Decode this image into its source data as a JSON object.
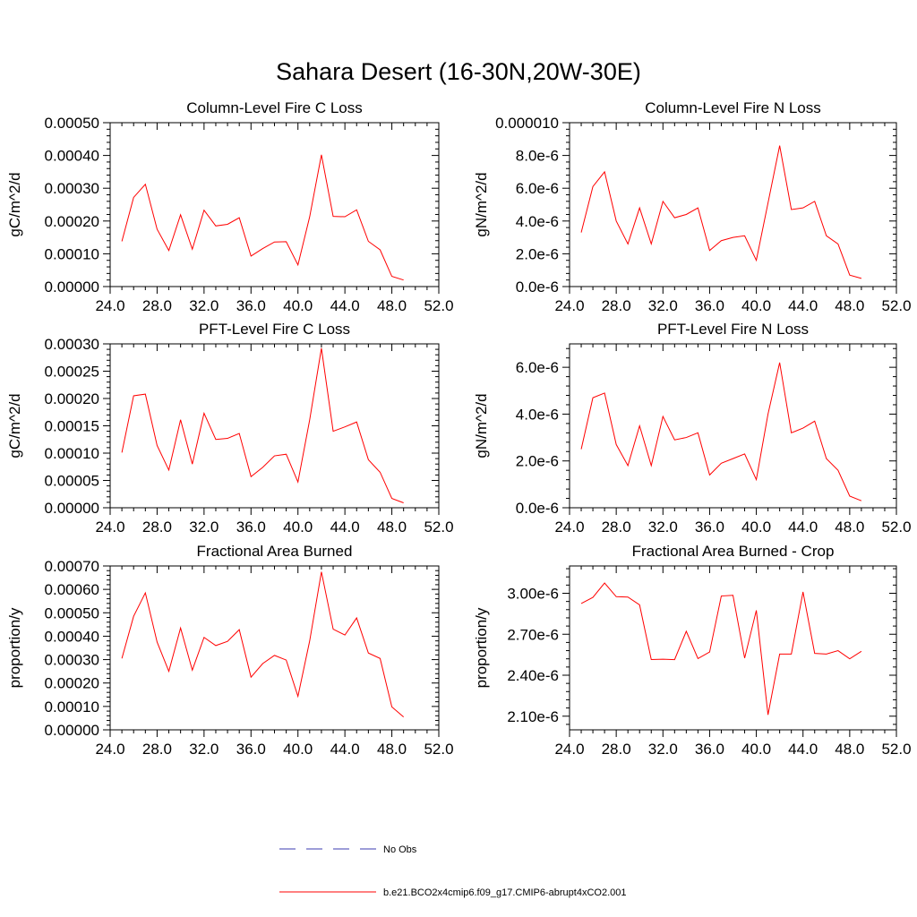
{
  "figure": {
    "title": "Sahara Desert (16-30N,20W-30E)"
  },
  "legend": {
    "items": [
      {
        "label": "No Obs",
        "color": "#3b3bb0",
        "style": "dashed"
      },
      {
        "label": "b.e21.BCO2x4cmip6.f09_g17.CMIP6-abrupt4xCO2.001",
        "color": "#ff0000",
        "style": "solid"
      }
    ]
  },
  "chart_data": [
    {
      "type": "line",
      "title": "Column-Level Fire C Loss",
      "ylabel": "gC/m^2/d",
      "xlim": [
        24,
        52
      ],
      "ylim": [
        0,
        0.0005
      ],
      "xticks": [
        24,
        28,
        32,
        36,
        40,
        44,
        48,
        52
      ],
      "xtick_labels": [
        "24.0",
        "28.0",
        "32.0",
        "36.0",
        "40.0",
        "44.0",
        "48.0",
        "52.0"
      ],
      "yticks": [
        0,
        0.0001,
        0.0002,
        0.0003,
        0.0004,
        0.0005
      ],
      "ytick_labels": [
        "0.00000",
        "0.00010",
        "0.00020",
        "0.00030",
        "0.00040",
        "0.00050"
      ],
      "x": [
        25,
        26,
        27,
        28,
        29,
        30,
        31,
        32,
        33,
        34,
        35,
        36,
        37,
        38,
        39,
        40,
        41,
        42,
        43,
        44,
        45,
        46,
        47,
        48,
        49
      ],
      "series": [
        {
          "values": [
            0.000138,
            0.000272,
            0.000312,
            0.000175,
            0.00011,
            0.000219,
            0.000114,
            0.000233,
            0.000185,
            0.00019,
            0.00021,
            9.3e-05,
            0.000116,
            0.000136,
            0.000137,
            6.6e-05,
            0.000213,
            0.000402,
            0.000214,
            0.000213,
            0.000234,
            0.000138,
            0.000112,
            3.1e-05,
            2e-05
          ],
          "color": "#ff0000"
        }
      ]
    },
    {
      "type": "line",
      "title": "Column-Level Fire N Loss",
      "ylabel": "gN/m^2/d",
      "xlim": [
        24,
        52
      ],
      "ylim": [
        0,
        1e-05
      ],
      "xticks": [
        24,
        28,
        32,
        36,
        40,
        44,
        48,
        52
      ],
      "xtick_labels": [
        "24.0",
        "28.0",
        "32.0",
        "36.0",
        "40.0",
        "44.0",
        "48.0",
        "52.0"
      ],
      "yticks": [
        0,
        2e-06,
        4e-06,
        6e-06,
        8e-06,
        1e-05
      ],
      "ytick_labels": [
        "0.0e-6",
        "2.0e-6",
        "4.0e-6",
        "6.0e-6",
        "8.0e-6",
        "0.000010"
      ],
      "x": [
        25,
        26,
        27,
        28,
        29,
        30,
        31,
        32,
        33,
        34,
        35,
        36,
        37,
        38,
        39,
        40,
        41,
        42,
        43,
        44,
        45,
        46,
        47,
        48,
        49
      ],
      "series": [
        {
          "values": [
            3.3e-06,
            6.1e-06,
            7e-06,
            4e-06,
            2.6e-06,
            4.8e-06,
            2.6e-06,
            5.2e-06,
            4.2e-06,
            4.4e-06,
            4.8e-06,
            2.2e-06,
            2.8e-06,
            3e-06,
            3.1e-06,
            1.6e-06,
            5.1e-06,
            8.6e-06,
            4.7e-06,
            4.8e-06,
            5.2e-06,
            3.1e-06,
            2.6e-06,
            7e-07,
            5e-07
          ],
          "color": "#ff0000"
        }
      ]
    },
    {
      "type": "line",
      "title": "PFT-Level Fire C Loss",
      "ylabel": "gC/m^2/d",
      "xlim": [
        24,
        52
      ],
      "ylim": [
        0,
        0.0003
      ],
      "xticks": [
        24,
        28,
        32,
        36,
        40,
        44,
        48,
        52
      ],
      "xtick_labels": [
        "24.0",
        "28.0",
        "32.0",
        "36.0",
        "40.0",
        "44.0",
        "48.0",
        "52.0"
      ],
      "yticks": [
        0,
        5e-05,
        0.0001,
        0.00015,
        0.0002,
        0.00025,
        0.0003
      ],
      "ytick_labels": [
        "0.00000",
        "0.00005",
        "0.00010",
        "0.00015",
        "0.00020",
        "0.00025",
        "0.00030"
      ],
      "x": [
        25,
        26,
        27,
        28,
        29,
        30,
        31,
        32,
        33,
        34,
        35,
        36,
        37,
        38,
        39,
        40,
        41,
        42,
        43,
        44,
        45,
        46,
        47,
        48,
        49
      ],
      "series": [
        {
          "values": [
            0.000101,
            0.000205,
            0.000208,
            0.000114,
            6.9e-05,
            0.000161,
            8e-05,
            0.000173,
            0.000125,
            0.000127,
            0.000136,
            5.7e-05,
            7.4e-05,
            9.5e-05,
            9.8e-05,
            4.7e-05,
            0.000161,
            0.000292,
            0.00014,
            0.000148,
            0.000157,
            8.8e-05,
            6.5e-05,
            1.7e-05,
            9e-06
          ],
          "color": "#ff0000"
        }
      ]
    },
    {
      "type": "line",
      "title": "PFT-Level Fire N Loss",
      "ylabel": "gN/m^2/d",
      "xlim": [
        24,
        52
      ],
      "ylim": [
        0,
        7e-06
      ],
      "xticks": [
        24,
        28,
        32,
        36,
        40,
        44,
        48,
        52
      ],
      "xtick_labels": [
        "24.0",
        "28.0",
        "32.0",
        "36.0",
        "40.0",
        "44.0",
        "48.0",
        "52.0"
      ],
      "yticks": [
        0,
        2e-06,
        4e-06,
        6e-06
      ],
      "ytick_labels": [
        "0.0e-6",
        "2.0e-6",
        "4.0e-6",
        "6.0e-6"
      ],
      "x": [
        25,
        26,
        27,
        28,
        29,
        30,
        31,
        32,
        33,
        34,
        35,
        36,
        37,
        38,
        39,
        40,
        41,
        42,
        43,
        44,
        45,
        46,
        47,
        48,
        49
      ],
      "series": [
        {
          "values": [
            2.5e-06,
            4.7e-06,
            4.9e-06,
            2.7e-06,
            1.8e-06,
            3.5e-06,
            1.8e-06,
            3.9e-06,
            2.9e-06,
            3e-06,
            3.2e-06,
            1.4e-06,
            1.9e-06,
            2.1e-06,
            2.3e-06,
            1.2e-06,
            4e-06,
            6.2e-06,
            3.2e-06,
            3.4e-06,
            3.7e-06,
            2.1e-06,
            1.6e-06,
            5e-07,
            3e-07
          ],
          "color": "#ff0000"
        }
      ]
    },
    {
      "type": "line",
      "title": "Fractional Area Burned",
      "ylabel": "proportion/y",
      "xlim": [
        24,
        52
      ],
      "ylim": [
        0,
        0.0007
      ],
      "xticks": [
        24,
        28,
        32,
        36,
        40,
        44,
        48,
        52
      ],
      "xtick_labels": [
        "24.0",
        "28.0",
        "32.0",
        "36.0",
        "40.0",
        "44.0",
        "48.0",
        "52.0"
      ],
      "yticks": [
        0,
        0.0001,
        0.0002,
        0.0003,
        0.0004,
        0.0005,
        0.0006,
        0.0007
      ],
      "ytick_labels": [
        "0.00000",
        "0.00010",
        "0.00020",
        "0.00030",
        "0.00040",
        "0.00050",
        "0.00060",
        "0.00070"
      ],
      "x": [
        25,
        26,
        27,
        28,
        29,
        30,
        31,
        32,
        33,
        34,
        35,
        36,
        37,
        38,
        39,
        40,
        41,
        42,
        43,
        44,
        45,
        46,
        47,
        48,
        49
      ],
      "series": [
        {
          "values": [
            0.000305,
            0.000485,
            0.000585,
            0.000375,
            0.00025,
            0.000435,
            0.000255,
            0.000395,
            0.00036,
            0.000378,
            0.000428,
            0.000225,
            0.000283,
            0.000318,
            0.000298,
            0.000143,
            0.00038,
            0.000675,
            0.00043,
            0.000405,
            0.000478,
            0.000328,
            0.000305,
            9.8e-05,
            5.5e-05
          ],
          "color": "#ff0000"
        }
      ]
    },
    {
      "type": "line",
      "title": "Fractional Area Burned - Crop",
      "ylabel": "proportion/y",
      "xlim": [
        24,
        52
      ],
      "ylim": [
        2e-06,
        3.2e-06
      ],
      "xticks": [
        24,
        28,
        32,
        36,
        40,
        44,
        48,
        52
      ],
      "xtick_labels": [
        "24.0",
        "28.0",
        "32.0",
        "36.0",
        "40.0",
        "44.0",
        "48.0",
        "52.0"
      ],
      "yticks": [
        2.1e-06,
        2.4e-06,
        2.7e-06,
        3e-06
      ],
      "ytick_labels": [
        "2.10e-6",
        "2.40e-6",
        "2.70e-6",
        "3.00e-6"
      ],
      "x": [
        25,
        26,
        27,
        28,
        29,
        30,
        31,
        32,
        33,
        34,
        35,
        36,
        37,
        38,
        39,
        40,
        41,
        42,
        43,
        44,
        45,
        46,
        47,
        48,
        49
      ],
      "series": [
        {
          "values": [
            2.925e-06,
            2.97e-06,
            3.075e-06,
            2.975e-06,
            2.972e-06,
            2.915e-06,
            2.515e-06,
            2.517e-06,
            2.514e-06,
            2.722e-06,
            2.522e-06,
            2.57e-06,
            2.98e-06,
            2.985e-06,
            2.525e-06,
            2.875e-06,
            2.11e-06,
            2.555e-06,
            2.555e-06,
            3.01e-06,
            2.56e-06,
            2.555e-06,
            2.58e-06,
            2.52e-06,
            2.575e-06
          ],
          "color": "#ff0000"
        }
      ]
    }
  ]
}
